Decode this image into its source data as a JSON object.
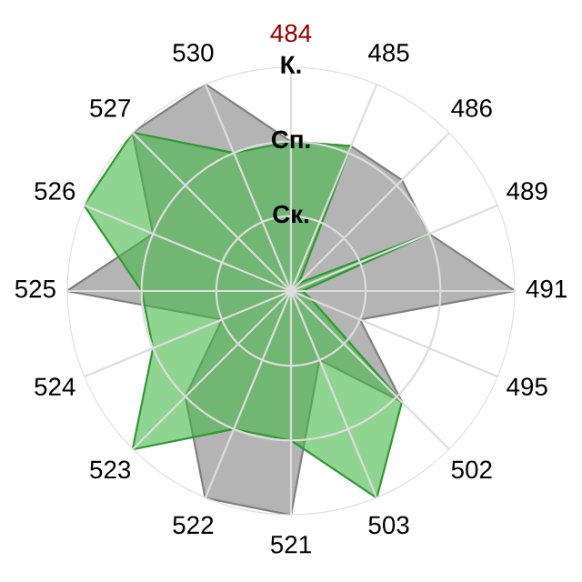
{
  "chart_data": {
    "type": "radar",
    "categories": [
      "484",
      "485",
      "486",
      "489",
      "491",
      "495",
      "502",
      "503",
      "521",
      "522",
      "523",
      "524",
      "525",
      "526",
      "527",
      "530"
    ],
    "series": [
      {
        "color": "#b4b4b4",
        "values": [
          2,
          2.1,
          2.1,
          2,
          3,
          1,
          2.1,
          1,
          3,
          3,
          2,
          1,
          3,
          2,
          3,
          3
        ]
      },
      {
        "color": "#44b746",
        "values": [
          2,
          2.1,
          0.15,
          2,
          0.15,
          0.3,
          2.1,
          3,
          2,
          2,
          3,
          2,
          2,
          3,
          3,
          2
        ]
      }
    ],
    "ylim": [
      0,
      3
    ],
    "yticks": [
      {
        "value": 1,
        "label": "Ск."
      },
      {
        "value": 2,
        "label": "Сп."
      },
      {
        "value": 3,
        "label": "К."
      }
    ],
    "grid": true,
    "legend": false
  }
}
